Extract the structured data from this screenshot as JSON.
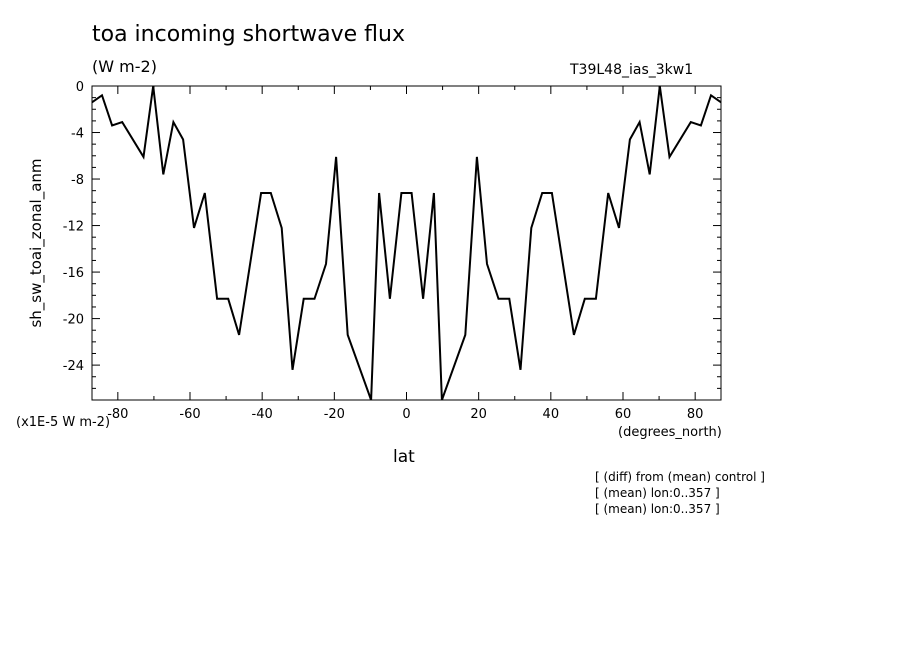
{
  "chart_data": {
    "type": "line",
    "title": "toa incoming shortwave flux",
    "units": "(W m-2)",
    "run_label": "T39L48_ias_3kw1",
    "xlabel": "lat",
    "xlabel_units": "(degrees_north)",
    "ylabel": "sh_sw_toai_zonal_anm",
    "scale_note": "(x1E-5 W m-2)",
    "xlim": [
      -87.16,
      87.16
    ],
    "ylim": [
      -27,
      0
    ],
    "xticks": [
      -80,
      -60,
      -40,
      -20,
      0,
      20,
      40,
      60,
      80
    ],
    "xtick_labels": [
      "-80",
      "-60",
      "-40",
      "-20",
      "0",
      "20",
      "40",
      "60",
      "80"
    ],
    "yticks": [
      0,
      -4,
      -8,
      -12,
      -16,
      -20,
      -24
    ],
    "ytick_labels": [
      "0",
      "-4",
      "-8",
      "-12",
      "-16",
      "-20",
      "-24"
    ],
    "grid": false,
    "x": [
      -87.16,
      -84.39,
      -81.6,
      -78.8,
      -72.9,
      -70.2,
      -67.4,
      -64.6,
      -61.9,
      -58.9,
      -55.9,
      -52.5,
      -49.4,
      -46.4,
      -40.3,
      -37.6,
      -34.6,
      -31.6,
      -28.5,
      -25.5,
      -22.3,
      -19.5,
      -16.3,
      -9.8,
      -7.6,
      -4.6,
      -1.4,
      1.4,
      4.6,
      7.6,
      9.8,
      16.3,
      19.5,
      22.3,
      25.5,
      28.5,
      31.6,
      34.6,
      37.6,
      40.3,
      46.4,
      49.4,
      52.5,
      55.9,
      58.9,
      61.9,
      64.6,
      67.4,
      70.2,
      72.9,
      78.8,
      81.6,
      84.39,
      87.16
    ],
    "y": [
      -1.4,
      -0.8,
      -3.4,
      -3.1,
      -6.1,
      0.0,
      -7.6,
      -3.1,
      -4.6,
      -12.2,
      -9.2,
      -18.3,
      -18.3,
      -21.4,
      -9.2,
      -9.2,
      -12.2,
      -24.4,
      -18.3,
      -18.3,
      -15.3,
      -6.1,
      -21.4,
      -27.0,
      -9.2,
      -18.3,
      -9.2,
      -9.2,
      -18.3,
      -9.2,
      -27.0,
      -21.4,
      -6.1,
      -15.3,
      -18.3,
      -18.3,
      -24.4,
      -12.2,
      -9.2,
      -9.2,
      -21.4,
      -18.3,
      -18.3,
      -9.2,
      -12.2,
      -4.6,
      -3.1,
      -7.6,
      0.0,
      -6.1,
      -3.1,
      -3.4,
      -0.8,
      -1.4
    ]
  },
  "notes": [
    "[ (diff) from (mean) control ]",
    "[ (mean) lon:0..357 ]",
    "[ (mean) lon:0..357 ]"
  ]
}
